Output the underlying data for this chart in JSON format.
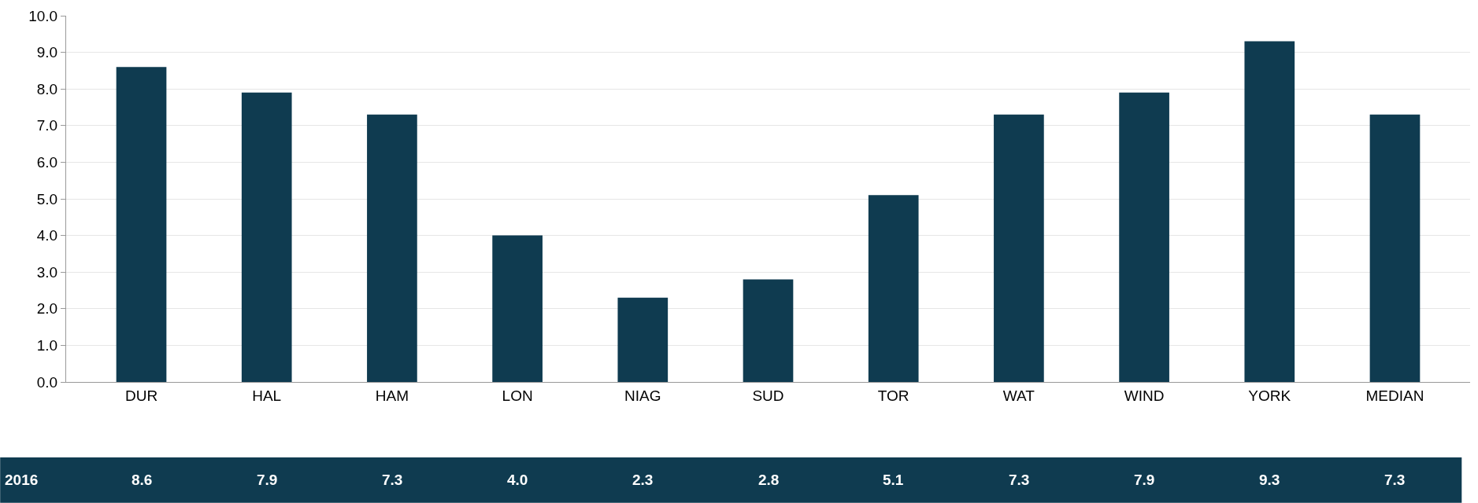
{
  "chart_data": {
    "type": "bar",
    "categories": [
      "DUR",
      "HAL",
      "HAM",
      "LON",
      "NIAG",
      "SUD",
      "TOR",
      "WAT",
      "WIND",
      "YORK",
      "MEDIAN"
    ],
    "series": [
      {
        "name": "2016",
        "color": "#0f3b50",
        "values": [
          8.6,
          7.9,
          7.3,
          4.0,
          2.3,
          2.8,
          5.1,
          7.3,
          7.9,
          9.3,
          7.3
        ],
        "value_labels": [
          "8.6",
          "7.9",
          "7.3",
          "4.0",
          "2.3",
          "2.8",
          "5.1",
          "7.3",
          "7.9",
          "9.3",
          "7.3"
        ]
      }
    ],
    "ylim": [
      0,
      10
    ],
    "yticks": [
      {
        "value": 0,
        "label": "0.0"
      },
      {
        "value": 1,
        "label": "1.0"
      },
      {
        "value": 2,
        "label": "2.0"
      },
      {
        "value": 3,
        "label": "3.0"
      },
      {
        "value": 4,
        "label": "4.0"
      },
      {
        "value": 5,
        "label": "5.0"
      },
      {
        "value": 6,
        "label": "6.0"
      },
      {
        "value": 7,
        "label": "7.0"
      },
      {
        "value": 8,
        "label": "8.0"
      },
      {
        "value": 9,
        "label": "9.0"
      },
      {
        "value": 10,
        "label": "10.0"
      }
    ],
    "grid": "y",
    "legend": false
  }
}
